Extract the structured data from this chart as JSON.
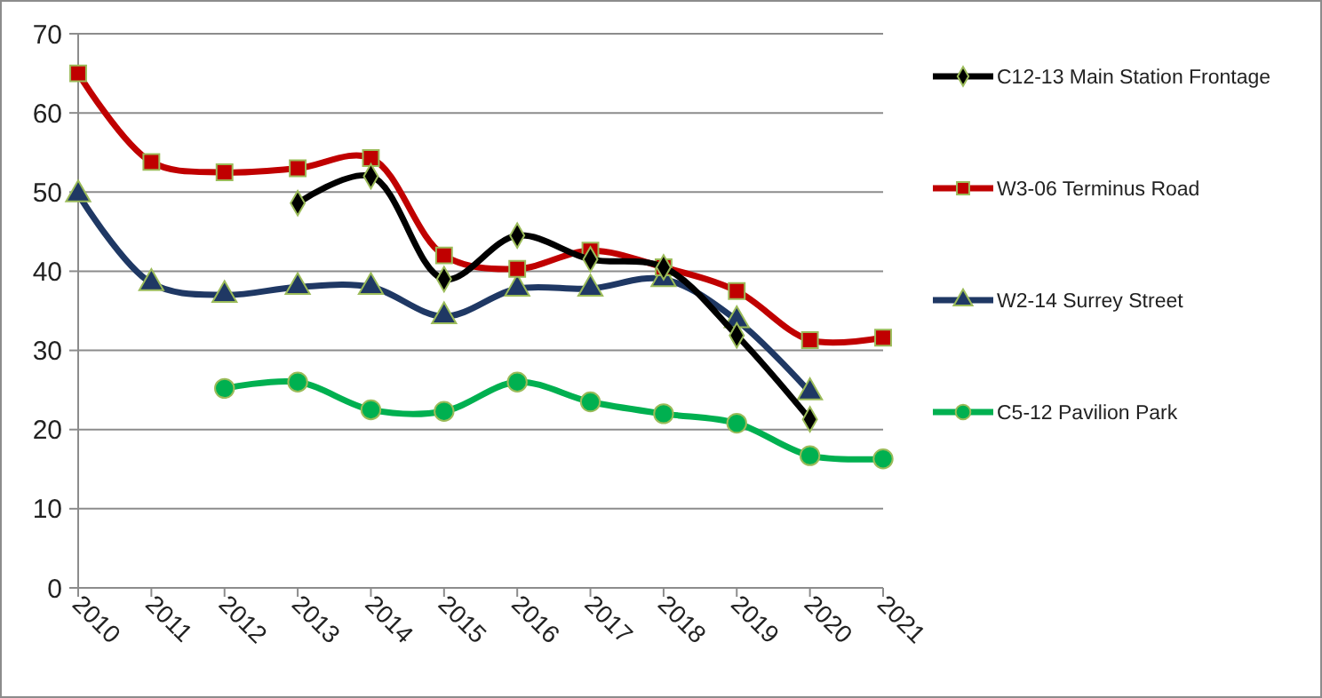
{
  "chart_data": {
    "type": "line",
    "categories": [
      "2010",
      "2011",
      "2012",
      "2013",
      "2014",
      "2015",
      "2016",
      "2017",
      "2018",
      "2019",
      "2020",
      "2021"
    ],
    "ylim": [
      0,
      70
    ],
    "yticks": [
      0,
      10,
      20,
      30,
      40,
      50,
      60,
      70
    ],
    "grid": "y",
    "legend": "right",
    "line_style": "solid",
    "series": [
      {
        "name": "C12-13 Main Station Frontage",
        "color": "#000000",
        "marker": "diamond",
        "values": [
          null,
          null,
          null,
          48.6,
          52,
          39,
          44.5,
          41.5,
          40.5,
          31.9,
          21.3,
          null
        ]
      },
      {
        "name": "W3-06 Terminus Road",
        "color": "#c00000",
        "marker": "square",
        "values": [
          65,
          53.8,
          52.5,
          53,
          54.3,
          42,
          40.3,
          42.6,
          40.5,
          37.5,
          31.3,
          31.6
        ]
      },
      {
        "name": "W2-14 Surrey Street",
        "color": "#1f3864",
        "marker": "triangle",
        "values": [
          49.7,
          38.5,
          37,
          38,
          38,
          34.3,
          37.8,
          37.8,
          39,
          33.8,
          24.7,
          null
        ]
      },
      {
        "name": "C5-12 Pavilion Park",
        "color": "#00b050",
        "marker": "circle",
        "values": [
          null,
          null,
          25.2,
          26,
          22.5,
          22.3,
          26,
          23.5,
          22,
          20.8,
          16.7,
          16.3
        ]
      }
    ]
  }
}
